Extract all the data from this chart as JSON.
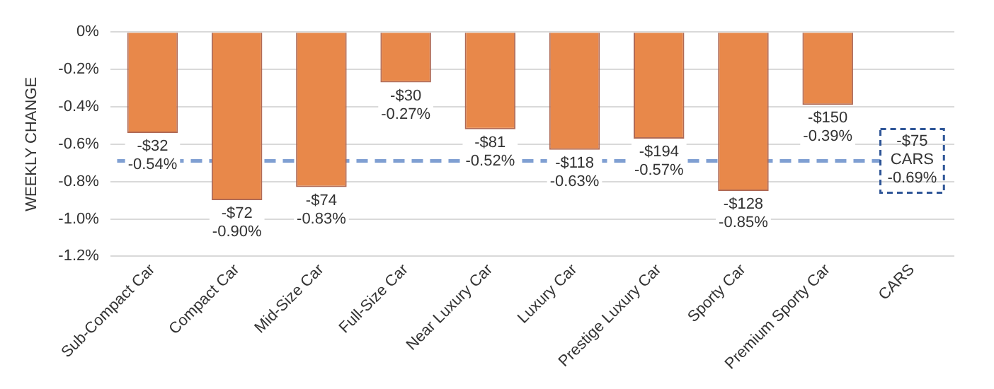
{
  "chart_data": {
    "type": "bar",
    "ylabel": "WEEKLY CHANGE",
    "categories": [
      "Sub-Compact Car",
      "Compact Car",
      "Mid-Size Car",
      "Full-Size Car",
      "Near Luxury Car",
      "Luxury Car",
      "Prestige Luxury Car",
      "Sporty Car",
      "Premium Sporty Car",
      "CARS"
    ],
    "series": [
      {
        "color": "#e8884a",
        "values": [
          -0.54,
          -0.9,
          -0.83,
          -0.27,
          -0.52,
          -0.63,
          -0.57,
          -0.85,
          -0.39,
          null
        ],
        "value_labels": [
          "-$32\n-0.54%",
          "-$72\n-0.90%",
          "-$74\n-0.83%",
          "-$30\n-0.27%",
          "-$81\n-0.52%",
          "-$118\n-0.63%",
          "-$194\n-0.57%",
          "-$128\n-0.85%",
          "-$150\n-0.39%",
          null
        ]
      }
    ],
    "ylim": [
      -1.2,
      0
    ],
    "yticks": [
      {
        "value": 0,
        "label": "0%"
      },
      {
        "value": -0.2,
        "label": "-0.2%"
      },
      {
        "value": -0.4,
        "label": "-0.4%"
      },
      {
        "value": -0.6,
        "label": "-0.6%"
      },
      {
        "value": -0.8,
        "label": "-0.8%"
      },
      {
        "value": -1.0,
        "label": "-1.0%"
      },
      {
        "value": -1.2,
        "label": "-1.2%"
      }
    ],
    "ref_lines": [
      {
        "axis": "y",
        "value": -0.69,
        "label": "-$75\nCARS\n-0.69%",
        "color": "#7f9fd2",
        "line_style": "dashed"
      }
    ],
    "grid": "y",
    "legend": false
  }
}
